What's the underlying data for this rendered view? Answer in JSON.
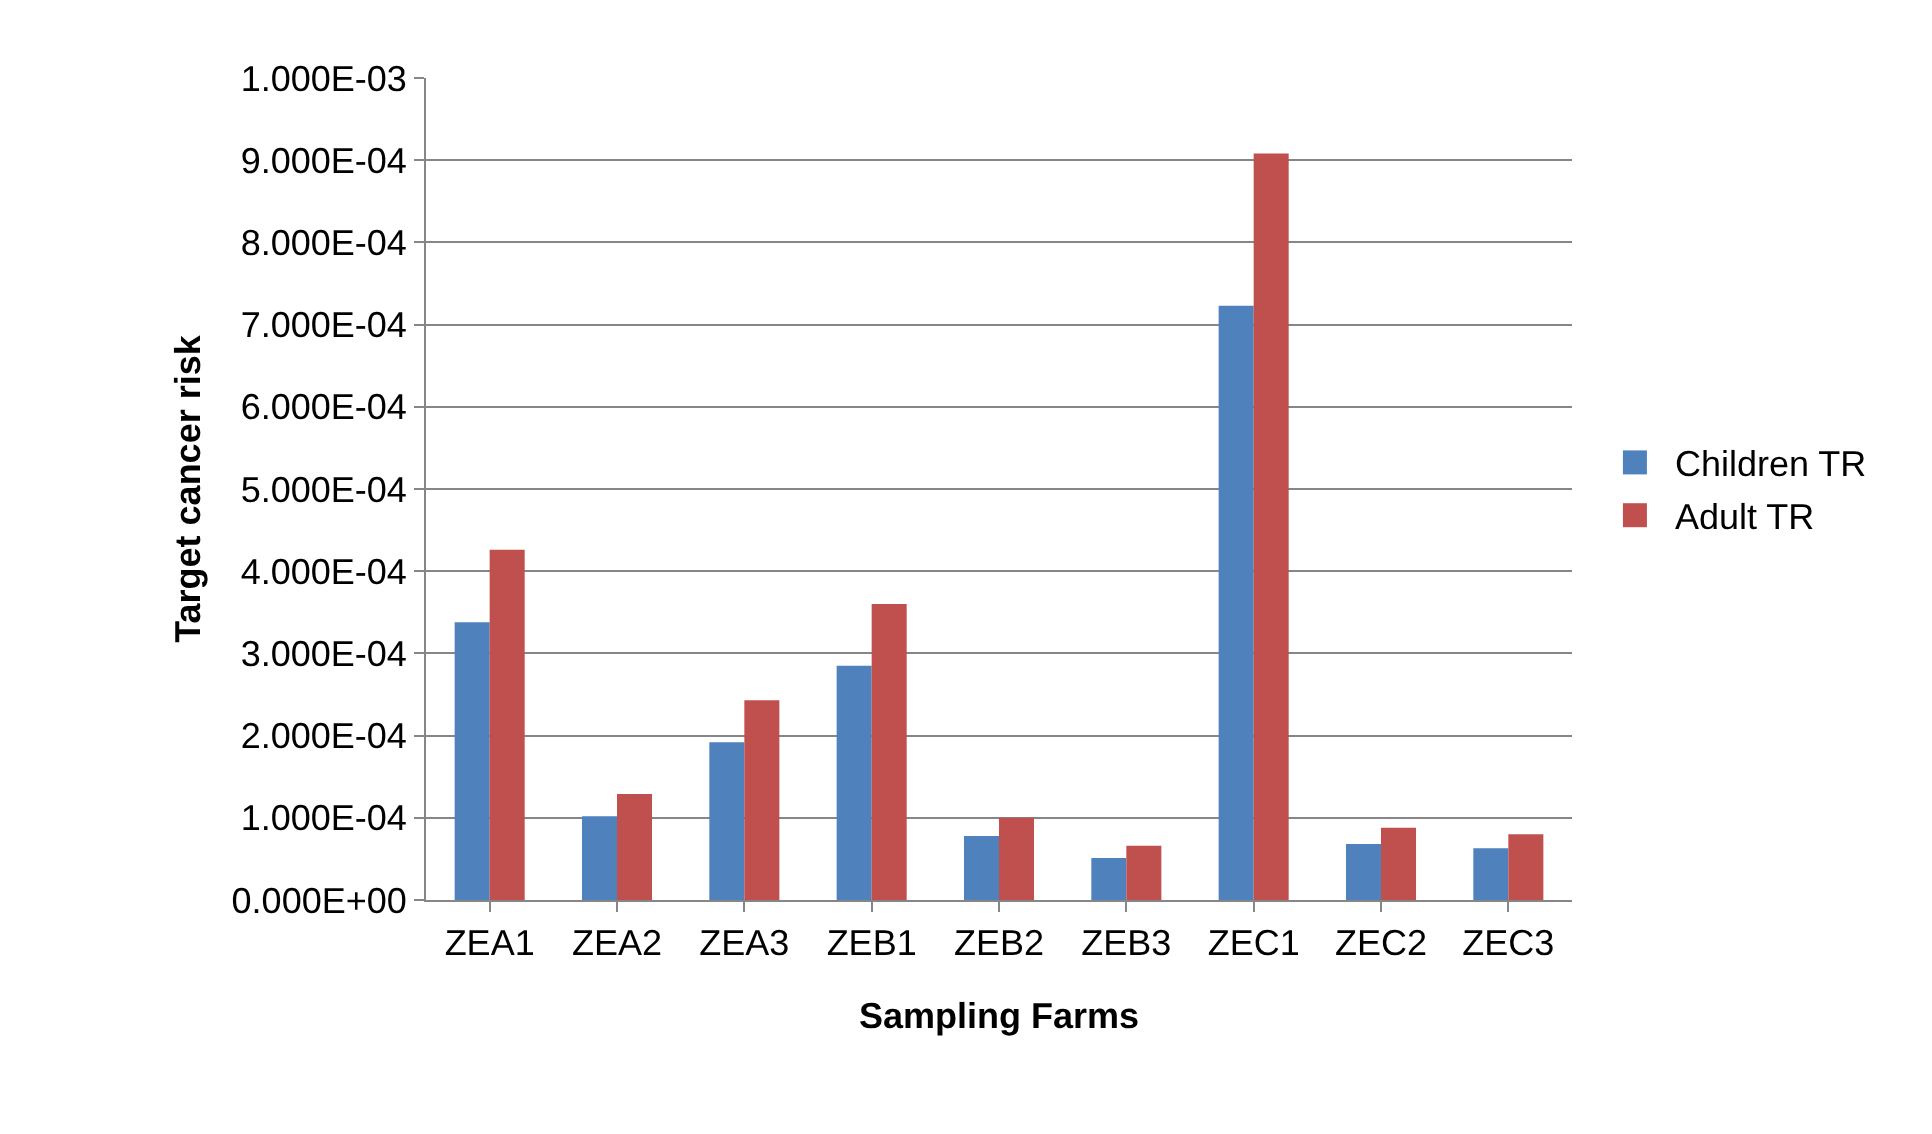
{
  "chart_data": {
    "type": "bar",
    "xlabel": "Sampling Farms",
    "ylabel": "Target cancer risk",
    "categories": [
      "ZEA1",
      "ZEA2",
      "ZEA3",
      "ZEB1",
      "ZEB2",
      "ZEB3",
      "ZEC1",
      "ZEC2",
      "ZEC3"
    ],
    "series": [
      {
        "name": "Children TR",
        "color": "#4f81bd",
        "values": [
          0.000338,
          0.000102,
          0.000192,
          0.000285,
          7.8e-05,
          5.1e-05,
          0.000723,
          6.8e-05,
          6.3e-05
        ]
      },
      {
        "name": "Adult TR",
        "color": "#c0504d",
        "values": [
          0.000426,
          0.000129,
          0.000243,
          0.00036,
          0.0001,
          6.6e-05,
          0.000908,
          8.8e-05,
          8e-05
        ]
      }
    ],
    "ylim": [
      0,
      0.001
    ],
    "yticks": [
      {
        "value": 0,
        "label": "0.000E+00"
      },
      {
        "value": 0.0001,
        "label": "1.000E-04"
      },
      {
        "value": 0.0002,
        "label": "2.000E-04"
      },
      {
        "value": 0.0003,
        "label": "3.000E-04"
      },
      {
        "value": 0.0004,
        "label": "4.000E-04"
      },
      {
        "value": 0.0005,
        "label": "5.000E-04"
      },
      {
        "value": 0.0006,
        "label": "6.000E-04"
      },
      {
        "value": 0.0007,
        "label": "7.000E-04"
      },
      {
        "value": 0.0008,
        "label": "8.000E-04"
      },
      {
        "value": 0.0009,
        "label": "9.000E-04"
      },
      {
        "value": 0.001,
        "label": "1.000E-03"
      }
    ],
    "grid": "y",
    "legend": "right"
  }
}
